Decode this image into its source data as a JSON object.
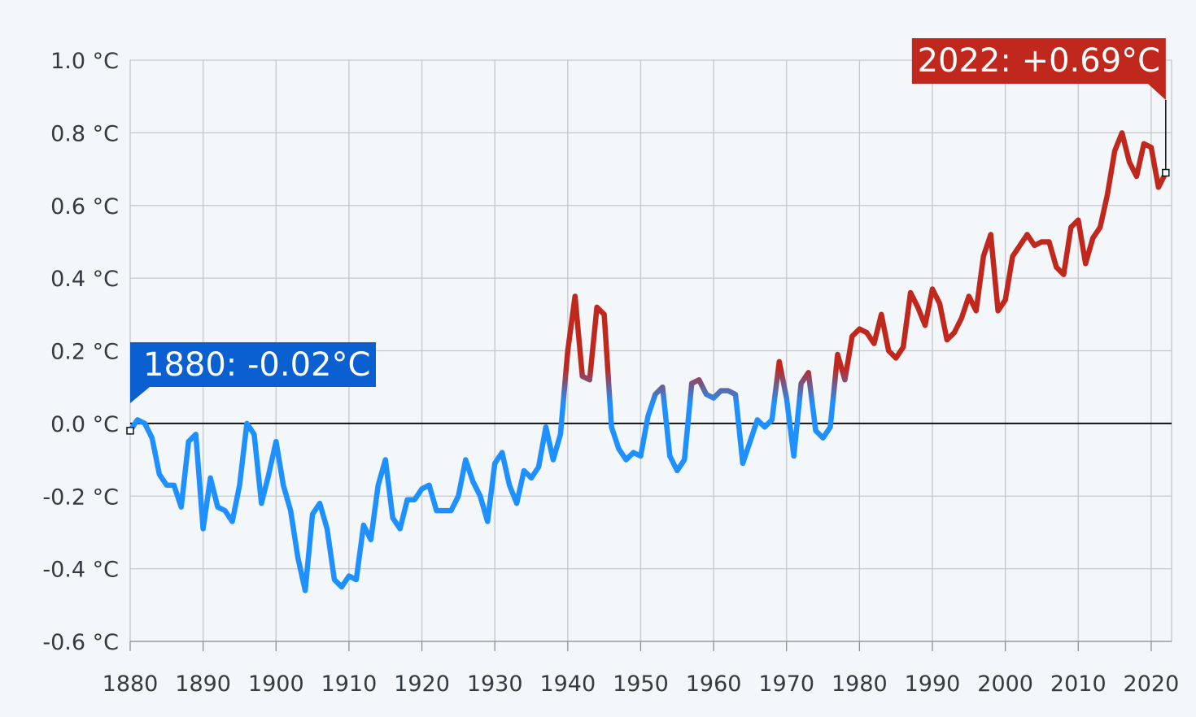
{
  "chart_data": {
    "type": "line",
    "title": "",
    "xlabel": "",
    "ylabel": "",
    "xlim": [
      1880,
      2022
    ],
    "ylim": [
      -0.6,
      1.0
    ],
    "grid": true,
    "y_ticks": [
      "1.0 °C",
      "0.8 °C",
      "0.6 °C",
      "0.4 °C",
      "0.2 °C",
      "0.0 °C",
      "-0.2 °C",
      "-0.4 °C",
      "-0.6 °C"
    ],
    "y_tick_values": [
      1.0,
      0.8,
      0.6,
      0.4,
      0.2,
      0.0,
      -0.2,
      -0.4,
      -0.6
    ],
    "x_ticks": [
      "1880",
      "1890",
      "1900",
      "1910",
      "1920",
      "1930",
      "1940",
      "1950",
      "1960",
      "1970",
      "1980",
      "1990",
      "2000",
      "2010",
      "2020"
    ],
    "x_tick_values": [
      1880,
      1890,
      1900,
      1910,
      1920,
      1930,
      1940,
      1950,
      1960,
      1970,
      1980,
      1990,
      2000,
      2010,
      2020
    ],
    "colors": {
      "cold": "#1e90ff",
      "warm": "#c0281e",
      "zero_line": "#111111",
      "grid": "#c4c8cc"
    },
    "annotations": [
      {
        "label": "1880: -0.02°C",
        "year": 1880,
        "value": -0.02,
        "color": "#0a5fd1"
      },
      {
        "label": "2022: +0.69°C",
        "year": 2022,
        "value": 0.69,
        "color": "#c0281e"
      }
    ],
    "series": [
      {
        "start_year": 1880,
        "values": [
          -0.02,
          0.01,
          0.0,
          -0.04,
          -0.14,
          -0.17,
          -0.17,
          -0.23,
          -0.05,
          -0.03,
          -0.29,
          -0.15,
          -0.23,
          -0.24,
          -0.27,
          -0.17,
          0.0,
          -0.03,
          -0.22,
          -0.14,
          -0.05,
          -0.17,
          -0.24,
          -0.37,
          -0.46,
          -0.25,
          -0.22,
          -0.29,
          -0.43,
          -0.45,
          -0.42,
          -0.43,
          -0.28,
          -0.32,
          -0.17,
          -0.1,
          -0.26,
          -0.29,
          -0.21,
          -0.21,
          -0.18,
          -0.17,
          -0.24,
          -0.24,
          -0.24,
          -0.2,
          -0.1,
          -0.16,
          -0.2,
          -0.27,
          -0.11,
          -0.08,
          -0.17,
          -0.22,
          -0.13,
          -0.15,
          -0.12,
          -0.01,
          -0.1,
          -0.03,
          0.2,
          0.35,
          0.13,
          0.12,
          0.32,
          0.3,
          -0.01,
          -0.07,
          -0.1,
          -0.08,
          -0.09,
          0.02,
          0.08,
          0.1,
          -0.09,
          -0.13,
          -0.1,
          0.11,
          0.12,
          0.08,
          0.07,
          0.09,
          0.09,
          0.08,
          -0.11,
          -0.05,
          0.01,
          -0.01,
          0.01,
          0.17,
          0.07,
          -0.09,
          0.11,
          0.14,
          -0.02,
          -0.04,
          -0.01,
          0.19,
          0.12,
          0.24,
          0.26,
          0.25,
          0.22,
          0.3,
          0.2,
          0.18,
          0.21,
          0.36,
          0.32,
          0.27,
          0.37,
          0.33,
          0.23,
          0.25,
          0.29,
          0.35,
          0.31,
          0.46,
          0.52,
          0.31,
          0.34,
          0.46,
          0.49,
          0.52,
          0.49,
          0.5,
          0.5,
          0.43,
          0.41,
          0.54,
          0.56,
          0.44,
          0.51,
          0.54,
          0.63,
          0.75,
          0.8,
          0.72,
          0.68,
          0.77,
          0.76,
          0.65,
          0.69
        ]
      }
    ]
  }
}
